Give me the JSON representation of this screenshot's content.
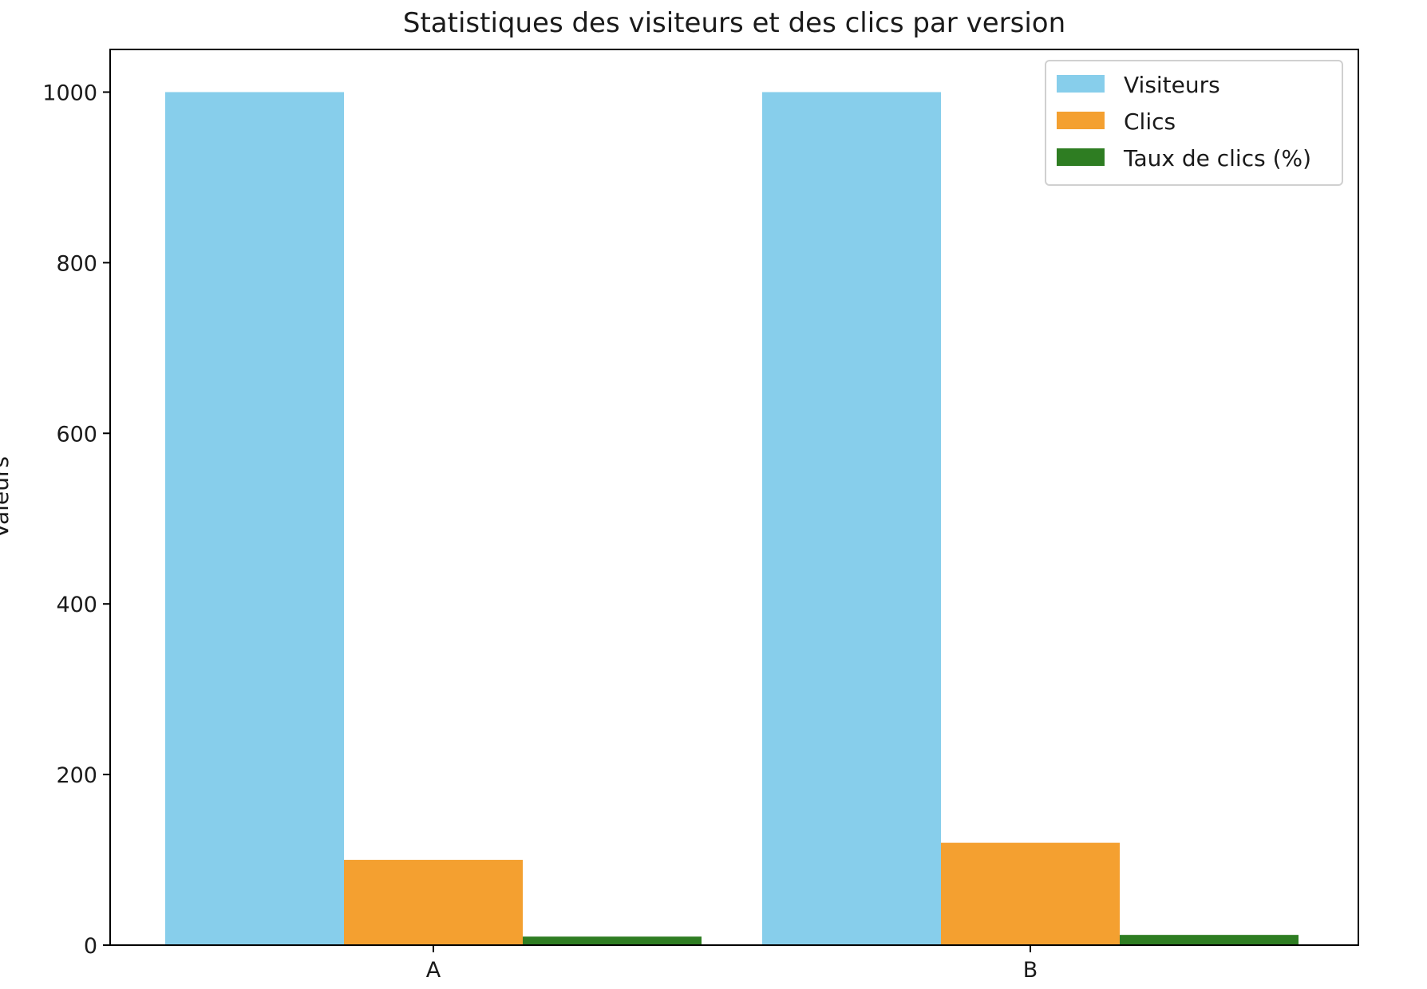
{
  "chart_data": {
    "type": "bar",
    "title": "Statistiques des visiteurs et des clics par version",
    "xlabel": "",
    "ylabel": "Valeurs",
    "categories": [
      "A",
      "B"
    ],
    "series": [
      {
        "name": "Visiteurs",
        "values": [
          1000,
          1000
        ],
        "color": "#87CEEB"
      },
      {
        "name": "Clics",
        "values": [
          100,
          120
        ],
        "color": "#F4A030"
      },
      {
        "name": "Taux de clics (%)",
        "values": [
          10,
          12
        ],
        "color": "#2E7D22"
      }
    ],
    "ylim": [
      0,
      1050
    ],
    "yticks": [
      0,
      200,
      400,
      600,
      800,
      1000
    ],
    "legend_position": "top-right",
    "grid": false
  }
}
